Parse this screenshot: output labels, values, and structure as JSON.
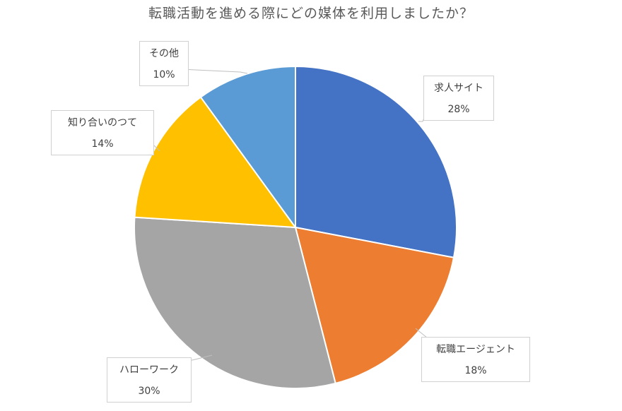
{
  "chart_data": {
    "type": "pie",
    "title": "転職活動を進める際にどの媒体を利用しましたか？",
    "slices": [
      {
        "label": "求人サイト",
        "value": 28,
        "value_label": "28%",
        "color": "#4472C4"
      },
      {
        "label": "転職エージェント",
        "value": 18,
        "value_label": "18%",
        "color": "#ED7D31"
      },
      {
        "label": "ハローワーク",
        "value": 30,
        "value_label": "30%",
        "color": "#A5A5A5"
      },
      {
        "label": "知り合いのつて",
        "value": 14,
        "value_label": "14%",
        "color": "#FFC000"
      },
      {
        "label": "その他",
        "value": 10,
        "value_label": "10%",
        "color": "#5B9BD5"
      }
    ],
    "start_angle_deg": 0,
    "direction": "clockwise",
    "legend": "none",
    "data_labels": "callouts"
  }
}
